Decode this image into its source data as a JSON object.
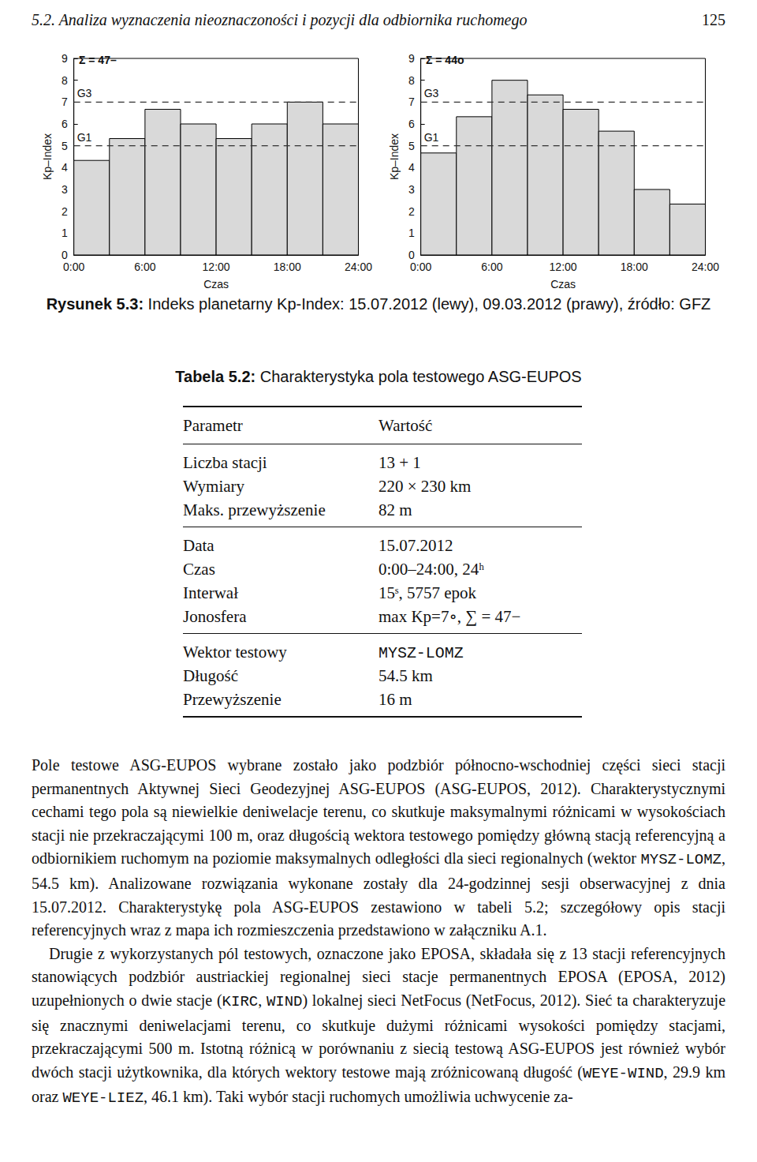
{
  "header": {
    "section_title": "5.2. Analiza wyznaczenia nieoznaczoności i pozycji dla odbiornika ruchomego",
    "page_number": "125"
  },
  "chart_data": [
    {
      "type": "bar",
      "x_label": "Czas",
      "y_label": "Kp–Index",
      "annotation": "Σ = 47–",
      "bins": [
        0,
        3,
        6,
        9,
        12,
        15,
        18,
        21,
        24
      ],
      "values": [
        4.33,
        5.33,
        6.67,
        6,
        5.33,
        6,
        7,
        6
      ],
      "color": "#d9d9d9",
      "xlim": [
        0,
        24
      ],
      "xticks": [
        {
          "value": 0,
          "label": "0:00"
        },
        {
          "value": 6,
          "label": "6:00"
        },
        {
          "value": 12,
          "label": "12:00"
        },
        {
          "value": 18,
          "label": "18:00"
        },
        {
          "value": 24,
          "label": "24:00"
        }
      ],
      "ylim": [
        0,
        9
      ],
      "yticks": [
        0,
        1,
        2,
        3,
        4,
        5,
        6,
        7,
        8,
        9
      ],
      "thresholds": [
        {
          "label": "G3",
          "value": 7
        },
        {
          "label": "G1",
          "value": 5
        }
      ],
      "grid": false
    },
    {
      "type": "bar",
      "x_label": "Czas",
      "y_label": "Kp–Index",
      "annotation": "Σ = 44o",
      "bins": [
        0,
        3,
        6,
        9,
        12,
        15,
        18,
        21,
        24
      ],
      "values": [
        4.67,
        6.33,
        8,
        7.33,
        6.67,
        5.67,
        3,
        2.33
      ],
      "color": "#d9d9d9",
      "xlim": [
        0,
        24
      ],
      "xticks": [
        {
          "value": 0,
          "label": "0:00"
        },
        {
          "value": 6,
          "label": "6:00"
        },
        {
          "value": 12,
          "label": "12:00"
        },
        {
          "value": 18,
          "label": "18:00"
        },
        {
          "value": 24,
          "label": "24:00"
        }
      ],
      "ylim": [
        0,
        9
      ],
      "yticks": [
        0,
        1,
        2,
        3,
        4,
        5,
        6,
        7,
        8,
        9
      ],
      "thresholds": [
        {
          "label": "G3",
          "value": 7
        },
        {
          "label": "G1",
          "value": 5
        }
      ],
      "grid": false
    }
  ],
  "figure_caption": {
    "label": "Rysunek 5.3:",
    "text": "Indeks planetarny Kp-Index: 15.07.2012 (lewy), 09.03.2012 (prawy), źródło: GFZ"
  },
  "table": {
    "caption_label": "Tabela 5.2:",
    "caption": "Charakterystyka pola testowego ASG-EUPOS",
    "header": [
      "Parametr",
      "Wartość"
    ],
    "groups": [
      [
        [
          "Liczba stacji",
          "13 + 1"
        ],
        [
          "Wymiary",
          "220 × 230 km"
        ],
        [
          "Maks. przewyższenie",
          "82 m"
        ]
      ],
      [
        [
          "Data",
          "15.07.2012"
        ],
        [
          "Czas",
          "0:00–24:00, 24ʰ"
        ],
        [
          "Interwał",
          "15ˢ, 5757 epok"
        ],
        [
          "Jonosfera",
          "max Kp=7∘, ∑ = 47−"
        ]
      ],
      [
        [
          "Wektor testowy",
          "MYSZ-LOMZ"
        ],
        [
          "Długość",
          "54.5 km"
        ],
        [
          "Przewyższenie",
          "16 m"
        ]
      ]
    ]
  },
  "mono_terms": [
    "MYSZ-LOMZ",
    "WEYE-WIND",
    "WEYE-LIEZ",
    "KIRC",
    "WIND"
  ],
  "paragraphs": [
    "Pole testowe ASG-EUPOS wybrane zostało jako podzbiór północno-wschodniej części sieci stacji permanentnych Aktywnej Sieci Geodezyjnej ASG-EUPOS (ASG-EUPOS, 2012). Charakterystycznymi cechami tego pola są niewielkie deniwelacje terenu, co skutkuje maksymalnymi różnicami w wysokościach stacji nie przekraczającymi 100 m, oraz długością wektora testowego pomiędzy główną stacją referencyjną a odbiornikiem ruchomym na poziomie maksymalnych odległości dla sieci regionalnych (wektor MYSZ-LOMZ, 54.5 km). Analizowane rozwiązania wykonane zostały dla 24-godzinnej sesji obserwacyjnej z dnia 15.07.2012. Charakterystykę pola ASG-EUPOS zestawiono w tabeli 5.2; szczegółowy opis stacji referencyjnych wraz z mapa ich rozmieszczenia przedstawiono w załączniku A.1.",
    "Drugie z wykorzystanych pól testowych, oznaczone jako EPOSA, składała się z 13 stacji referencyjnych stanowiących podzbiór austriackiej regionalnej sieci stacje permanentnych EPOSA (EPOSA, 2012) uzupełnionych o dwie stacje (KIRC, WIND) lokalnej sieci NetFocus (NetFocus, 2012). Sieć ta charakteryzuje się znacznymi deniwelacjami terenu, co skutkuje dużymi różnicami wysokości pomiędzy stacjami, przekraczającymi 500 m. Istotną różnicą w porównaniu z siecią testową ASG-EUPOS jest również wybór dwóch stacji użytkownika, dla których wektory testowe mają zróżnicowaną długość (WEYE-WIND, 29.9 km oraz WEYE-LIEZ, 46.1 km). Taki wybór stacji ruchomych umożliwia uchwycenie za-"
  ]
}
